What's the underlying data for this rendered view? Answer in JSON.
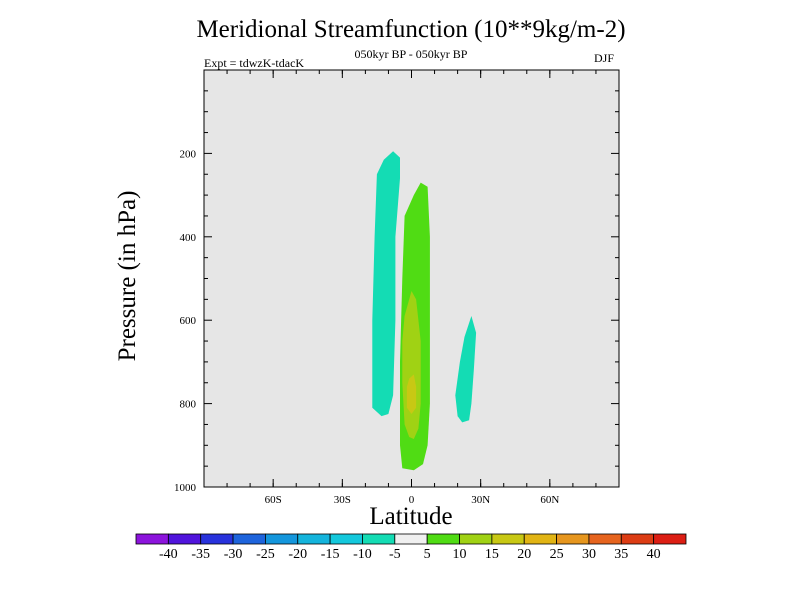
{
  "chart_data": {
    "type": "contour",
    "title": "Meridional Streamfunction (10**9kg/m-2)",
    "subtitle": "050kyr BP - 050kyr BP",
    "expt_label": "Expt = tdwzK-tdacK",
    "season": "DJF",
    "xlabel": "Latitude",
    "ylabel": "Pressure (in hPa)",
    "xlim": [
      -90,
      90
    ],
    "ylim": [
      1000,
      0
    ],
    "x_ticks": [
      {
        "value": -60,
        "label": "60S"
      },
      {
        "value": -30,
        "label": "30S"
      },
      {
        "value": 0,
        "label": "0"
      },
      {
        "value": 30,
        "label": "30N"
      },
      {
        "value": 60,
        "label": "60N"
      }
    ],
    "y_ticks": [
      {
        "value": 200,
        "label": "200"
      },
      {
        "value": 400,
        "label": "400"
      },
      {
        "value": 600,
        "label": "600"
      },
      {
        "value": 800,
        "label": "800"
      },
      {
        "value": 1000,
        "label": "1000"
      }
    ],
    "background_color": "#e6e6e6",
    "contour_regions": [
      {
        "name": "neg-5-to-10-south",
        "level_range": [
          -10,
          -5
        ],
        "color": "#14dcb4",
        "polygon": [
          [
            -13,
            830
          ],
          [
            -17,
            810
          ],
          [
            -17,
            600
          ],
          [
            -16,
            400
          ],
          [
            -15,
            250
          ],
          [
            -12,
            215
          ],
          [
            -8,
            195
          ],
          [
            -5,
            210
          ],
          [
            -5,
            260
          ],
          [
            -7,
            400
          ],
          [
            -7,
            600
          ],
          [
            -8,
            780
          ],
          [
            -10,
            825
          ]
        ]
      },
      {
        "name": "neg-5-to-10-north",
        "level_range": [
          -10,
          -5
        ],
        "color": "#14dcb4",
        "polygon": [
          [
            22,
            845
          ],
          [
            20,
            830
          ],
          [
            19,
            780
          ],
          [
            21,
            700
          ],
          [
            23,
            640
          ],
          [
            26,
            590
          ],
          [
            28,
            630
          ],
          [
            27,
            720
          ],
          [
            26,
            800
          ],
          [
            25,
            840
          ]
        ]
      },
      {
        "name": "pos-5-to-10-equator",
        "level_range": [
          5,
          10
        ],
        "color": "#50dc14",
        "polygon": [
          [
            -4,
            955
          ],
          [
            -5,
            900
          ],
          [
            -5,
            700
          ],
          [
            -4,
            500
          ],
          [
            -3,
            350
          ],
          [
            1,
            300
          ],
          [
            4,
            270
          ],
          [
            7,
            280
          ],
          [
            8,
            400
          ],
          [
            8,
            600
          ],
          [
            8,
            800
          ],
          [
            7,
            900
          ],
          [
            5,
            945
          ],
          [
            1,
            960
          ]
        ]
      },
      {
        "name": "pos-10-to-15-core",
        "level_range": [
          10,
          15
        ],
        "color": "#a0d214",
        "polygon": [
          [
            -1,
            880
          ],
          [
            -3,
            850
          ],
          [
            -4,
            750
          ],
          [
            -4,
            650
          ],
          [
            -3,
            590
          ],
          [
            0,
            530
          ],
          [
            2,
            550
          ],
          [
            4,
            650
          ],
          [
            4,
            800
          ],
          [
            3,
            860
          ],
          [
            1,
            885
          ]
        ]
      },
      {
        "name": "pos-15-to-20-core",
        "level_range": [
          15,
          20
        ],
        "color": "#c8c814",
        "polygon": [
          [
            0,
            825
          ],
          [
            -2,
            810
          ],
          [
            -2,
            760
          ],
          [
            -1,
            740
          ],
          [
            1,
            730
          ],
          [
            2,
            760
          ],
          [
            2,
            810
          ]
        ]
      }
    ],
    "colorbar": {
      "labels": [
        "-40",
        "-35",
        "-30",
        "-25",
        "-20",
        "-15",
        "-10",
        "-5",
        "5",
        "10",
        "15",
        "20",
        "25",
        "30",
        "35",
        "40"
      ],
      "colors": [
        "#8c14dc",
        "#5014dc",
        "#2832dc",
        "#1e64dc",
        "#1496dc",
        "#14b4dc",
        "#14c8dc",
        "#14dcb4",
        "#f0f0f0",
        "#50dc14",
        "#a0d214",
        "#c8c814",
        "#e1b414",
        "#e6961e",
        "#e6641e",
        "#dc3c14",
        "#dc1e14"
      ]
    }
  }
}
